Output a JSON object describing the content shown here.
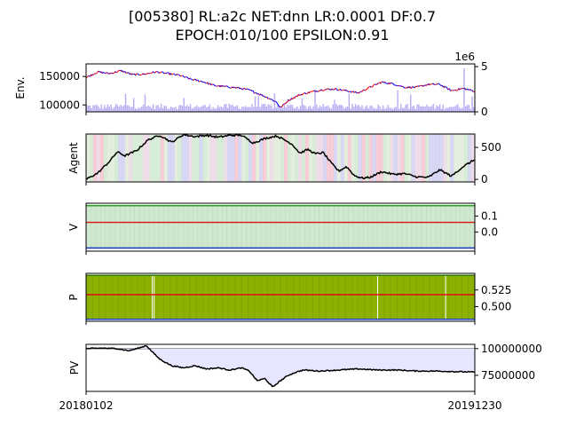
{
  "figure": {
    "title_line1": "[005380] RL:a2c NET:dnn LR:0.0001 DF:0.7",
    "title_line2": "EPOCH:010/100 EPSILON:0.91"
  },
  "chart_data": [
    {
      "id": "env",
      "type": "line",
      "ylabel": "Env.",
      "ylim": [
        88000,
        172000
      ],
      "yticks": [
        {
          "label": "150000",
          "v": 150000
        },
        {
          "label": "100000",
          "v": 100000
        }
      ],
      "secondary_axis": {
        "offset_label": "1e6",
        "ylim": [
          0,
          5.3
        ],
        "yticks": [
          {
            "label": "5",
            "v": 5
          },
          {
            "label": "0",
            "v": 0
          }
        ],
        "series_name": "volume",
        "kind": "bar",
        "color": "#b8b0f5"
      },
      "series": [
        {
          "name": "close",
          "colors": [
            "#ff0000",
            "#0000ff"
          ],
          "kind": "candlestick-trend",
          "x": [
            0,
            0.03,
            0.06,
            0.09,
            0.12,
            0.15,
            0.18,
            0.21,
            0.24,
            0.27,
            0.3,
            0.33,
            0.36,
            0.39,
            0.42,
            0.45,
            0.47,
            0.49,
            0.5,
            0.52,
            0.55,
            0.58,
            0.61,
            0.64,
            0.67,
            0.7,
            0.73,
            0.76,
            0.79,
            0.82,
            0.85,
            0.88,
            0.91,
            0.94,
            0.97,
            1.0
          ],
          "values": [
            148000,
            158000,
            155000,
            160000,
            153000,
            154000,
            158000,
            155000,
            152000,
            145000,
            141000,
            134000,
            132000,
            130000,
            126000,
            118000,
            112000,
            105000,
            95000,
            108000,
            118000,
            123000,
            127000,
            128000,
            125000,
            121000,
            131000,
            140000,
            137000,
            131000,
            131000,
            136000,
            136000,
            125000,
            129000,
            124000
          ]
        }
      ]
    },
    {
      "id": "agent",
      "type": "line",
      "ylabel": "Agent",
      "ylim": [
        -40,
        710
      ],
      "yticks": [
        {
          "label": "500",
          "v": 500
        },
        {
          "label": "0",
          "v": 0
        }
      ],
      "background_stripes": [
        "#f4b8c8",
        "#c8c8f0",
        "#c8e6c8",
        "#e8d0e0",
        "#d8e8d0"
      ],
      "series": [
        {
          "name": "holdings",
          "color": "#000000",
          "x": [
            0,
            0.03,
            0.06,
            0.08,
            0.1,
            0.13,
            0.16,
            0.19,
            0.22,
            0.25,
            0.28,
            0.31,
            0.34,
            0.37,
            0.4,
            0.43,
            0.46,
            0.49,
            0.51,
            0.53,
            0.55,
            0.57,
            0.59,
            0.61,
            0.63,
            0.65,
            0.67,
            0.69,
            0.71,
            0.73,
            0.76,
            0.79,
            0.82,
            0.85,
            0.88,
            0.91,
            0.94,
            0.97,
            1.0
          ],
          "values": [
            0,
            100,
            280,
            430,
            370,
            450,
            620,
            690,
            580,
            700,
            670,
            690,
            660,
            690,
            690,
            570,
            640,
            680,
            620,
            550,
            410,
            470,
            400,
            420,
            260,
            130,
            200,
            60,
            20,
            30,
            120,
            80,
            90,
            40,
            30,
            150,
            50,
            200,
            310
          ]
        }
      ]
    },
    {
      "id": "v",
      "type": "line",
      "ylabel": "V",
      "ylim": [
        -0.12,
        0.18
      ],
      "yticks": [
        {
          "label": "0.1",
          "v": 0.1
        },
        {
          "label": "0.0",
          "v": 0.0
        }
      ],
      "fill_color": "#cfe8cf",
      "series": [
        {
          "name": "upper",
          "color": "#2ca02c",
          "x": [
            0,
            1
          ],
          "values": [
            0.165,
            0.165
          ]
        },
        {
          "name": "mid",
          "color": "#dd1111",
          "x": [
            0,
            1
          ],
          "values": [
            0.06,
            0.06
          ]
        },
        {
          "name": "lower",
          "color": "#1f3fbf",
          "x": [
            0,
            1
          ],
          "values": [
            -0.1,
            -0.1
          ]
        }
      ]
    },
    {
      "id": "p",
      "type": "line",
      "ylabel": "P",
      "ylim": [
        0.478,
        0.55
      ],
      "yticks": [
        {
          "label": "0.525",
          "v": 0.525
        },
        {
          "label": "0.500",
          "v": 0.5
        }
      ],
      "fill_color": "#8db100",
      "series": [
        {
          "name": "upper",
          "color": "#2c7a00",
          "x": [
            0,
            1
          ],
          "values": [
            0.547,
            0.547
          ]
        },
        {
          "name": "mid",
          "color": "#dd1111",
          "x": [
            0,
            1
          ],
          "values": [
            0.518,
            0.518
          ]
        },
        {
          "name": "lower",
          "color": "#1f3fbf",
          "x": [
            0,
            1
          ],
          "values": [
            0.481,
            0.481
          ]
        }
      ]
    },
    {
      "id": "pv",
      "type": "area",
      "ylabel": "PV",
      "ylim": [
        60000000,
        104000000
      ],
      "yticks": [
        {
          "label": "100000000",
          "v": 100000000
        },
        {
          "label": "75000000",
          "v": 75000000
        }
      ],
      "xticks": [
        "20180102",
        "20191230"
      ],
      "fill_color": "#e6e6ff",
      "series": [
        {
          "name": "baseline",
          "color": "#999999",
          "x": [
            0,
            1
          ],
          "values": [
            100000000,
            100000000
          ]
        },
        {
          "name": "portfolio",
          "color": "#000000",
          "x": [
            0,
            0.04,
            0.08,
            0.11,
            0.14,
            0.155,
            0.17,
            0.19,
            0.22,
            0.25,
            0.28,
            0.31,
            0.34,
            0.37,
            0.4,
            0.42,
            0.44,
            0.46,
            0.48,
            0.5,
            0.52,
            0.54,
            0.56,
            0.6,
            0.65,
            0.7,
            0.75,
            0.8,
            0.85,
            0.9,
            0.95,
            1.0
          ],
          "values": [
            100000000,
            100500000,
            100000000,
            98000000,
            101000000,
            103000000,
            97000000,
            90000000,
            84000000,
            82000000,
            84000000,
            81000000,
            82000000,
            80000000,
            82000000,
            79000000,
            70000000,
            72000000,
            64000000,
            70000000,
            75000000,
            78000000,
            80000000,
            79000000,
            80000000,
            81000000,
            80000000,
            80000000,
            79000000,
            79000000,
            78500000,
            78000000
          ]
        }
      ]
    }
  ]
}
